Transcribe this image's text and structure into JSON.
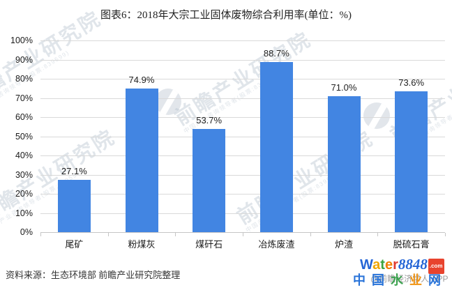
{
  "title": "图表6：2018年大宗工业固体废物综合利用率(单位：%)",
  "chart_data": {
    "type": "bar",
    "title": "图表6：2018年大宗工业固体废物综合利用率(单位：%)",
    "categories": [
      "尾矿",
      "粉煤灰",
      "煤矸石",
      "冶炼废渣",
      "炉渣",
      "脱硫石膏"
    ],
    "values": [
      27.1,
      74.9,
      53.7,
      88.7,
      71.0,
      73.6
    ],
    "value_labels": [
      "27.1%",
      "74.9%",
      "53.7%",
      "88.7%",
      "71.0%",
      "73.6%"
    ],
    "xlabel": "",
    "ylabel": "",
    "ylim": [
      0,
      100
    ],
    "yticks": [
      "0%",
      "10%",
      "20%",
      "30%",
      "40%",
      "50%",
      "60%",
      "70%",
      "80%",
      "90%",
      "100%"
    ],
    "grid": true,
    "legend": null,
    "bar_color": "#4285E2"
  },
  "watermark": {
    "brand": "前瞻产业研究院",
    "subtext": "中国产业咨询领导者(股票:839599)"
  },
  "footer": {
    "source": "资料来源：生态环境部 前瞻产业研究院整理",
    "credit": "@前瞻经济学人 APP"
  },
  "logo": {
    "letters": [
      "W",
      "a",
      "t",
      "e",
      "r"
    ],
    "number": "8848",
    "tld": ".com",
    "site_chars": [
      "中",
      "国",
      "水",
      "业",
      "网"
    ],
    "colors": {
      "bar": "#4285E2",
      "logo_blue": "#2565d6",
      "logo_green": "#3ba43f",
      "logo_orange": "#f0a500",
      "logo_red": "#e03a2f",
      "site_blue": "#1668d6"
    }
  }
}
